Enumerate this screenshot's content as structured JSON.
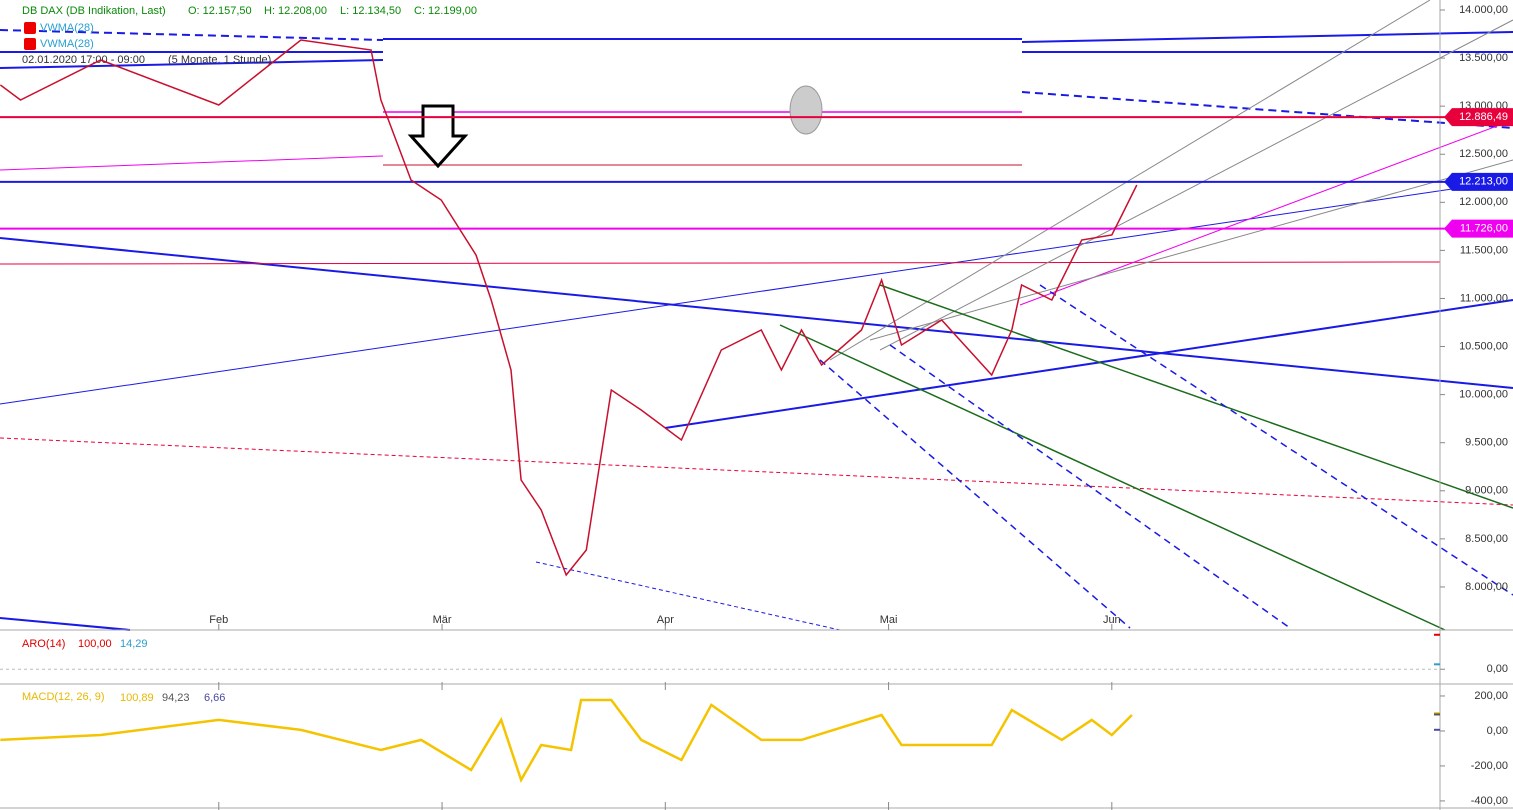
{
  "chart_data": [
    {
      "type": "line",
      "title": "DB DAX (DB Indikation, Last)",
      "quote": [
        "O: 12.157,50",
        "H: 12.208,00",
        "L: 12.134,50",
        "C: 12.199,00"
      ],
      "legend": [
        "VWMA(28)",
        "VWMA(28)"
      ],
      "period": "02.01.2020 17:00 - 09:00",
      "span": "(5 Monate, 1 Stunde)",
      "x": [
        0.022,
        0.112,
        0.471,
        1.0,
        1.368,
        1.682,
        1.726,
        1.861,
        1.996,
        2.152,
        2.22,
        2.309,
        2.354,
        2.444,
        2.556,
        2.646,
        2.758,
        2.892,
        3.072,
        3.251,
        3.43,
        3.52,
        3.61,
        3.7,
        3.879,
        3.969,
        4.058,
        4.238,
        4.462,
        4.552,
        4.596,
        4.731,
        4.865,
        5.0,
        5.045,
        5.112
      ],
      "values": [
        13220,
        13064,
        13480,
        13012,
        13688,
        13584,
        13064,
        12232,
        12024,
        11452,
        10984,
        10256,
        9112,
        8800,
        8124,
        8384,
        10048,
        9840,
        9528,
        10464,
        10672,
        10256,
        10672,
        10308,
        10672,
        11192,
        10516,
        10776,
        10204,
        10672,
        11140,
        10984,
        11608,
        11660,
        11868,
        12180
      ],
      "color": "#c8102e",
      "levels": [
        {
          "value": 12886.49,
          "label": "12.886,49",
          "color": "#e8003d"
        },
        {
          "value": 12213,
          "label": "12.213,00",
          "color": "#1a1ae6"
        },
        {
          "value": 11726,
          "label": "11.726,00",
          "color": "#f000f0"
        }
      ],
      "xlim": [
        0.02,
        6.47
      ],
      "xticks": [
        {
          "value": 1,
          "label": "Feb"
        },
        {
          "value": 2,
          "label": "Mär"
        },
        {
          "value": 3,
          "label": "Apr"
        },
        {
          "value": 4,
          "label": "Mai"
        },
        {
          "value": 5,
          "label": "Jun"
        }
      ],
      "ylim": [
        7573,
        14104
      ],
      "yticks": [
        {
          "value": 14000,
          "label": "14.000,00"
        },
        {
          "value": 13500,
          "label": "13.500,00"
        },
        {
          "value": 13000,
          "label": "13.000,00"
        },
        {
          "value": 12500,
          "label": "12.500,00"
        },
        {
          "value": 12000,
          "label": "12.000,00"
        },
        {
          "value": 11500,
          "label": "11.500,00"
        },
        {
          "value": 11000,
          "label": "11.000,00"
        },
        {
          "value": 10500,
          "label": "10.500,00"
        },
        {
          "value": 10000,
          "label": "10.000,00"
        },
        {
          "value": 9500,
          "label": "9.500,00"
        },
        {
          "value": 9000,
          "label": "9.000,00"
        },
        {
          "value": 8500,
          "label": "8.500,00"
        },
        {
          "value": 8000,
          "label": "8.000,00"
        }
      ]
    },
    {
      "type": "indicator",
      "title": "ARO(14)",
      "readouts": [
        {
          "value": 100,
          "label": "100,00",
          "color": "#e00000"
        },
        {
          "value": 14.29,
          "label": "14,29",
          "color": "#2a9fd0"
        }
      ],
      "ylim": [
        -8,
        108
      ],
      "yticks": [
        {
          "value": 0,
          "label": "0,00"
        }
      ]
    },
    {
      "type": "line",
      "title": "MACD(12, 26, 9)",
      "readouts": [
        {
          "value": 100.89,
          "label": "100,89",
          "color": "#e6b800"
        },
        {
          "value": 94.23,
          "label": "94,23",
          "color": "#555"
        },
        {
          "value": 6.66,
          "label": "6,66",
          "color": "#4a4aa0"
        }
      ],
      "x": [
        0.022,
        0.471,
        1.0,
        1.368,
        1.726,
        1.906,
        2.13,
        2.265,
        2.354,
        2.444,
        2.578,
        2.623,
        2.758,
        2.892,
        3.072,
        3.206,
        3.43,
        3.61,
        3.969,
        4.058,
        4.462,
        4.552,
        4.776,
        4.91,
        5.0,
        5.09
      ],
      "values": [
        -51,
        -23,
        63,
        6,
        -109,
        -51,
        -223,
        63,
        -280,
        -80,
        -109,
        177,
        177,
        -51,
        -166,
        149,
        -51,
        -51,
        91,
        -80,
        -80,
        120,
        -51,
        63,
        -23,
        91
      ],
      "color": "#f5c400",
      "xlim": [
        0.02,
        6.47
      ],
      "ylim": [
        -429,
        257
      ],
      "yticks": [
        {
          "value": 200,
          "label": "200,00"
        },
        {
          "value": 0,
          "label": "0,00"
        },
        {
          "value": -200,
          "label": "-200,00"
        },
        {
          "value": -400,
          "label": "-400,00"
        }
      ]
    }
  ]
}
